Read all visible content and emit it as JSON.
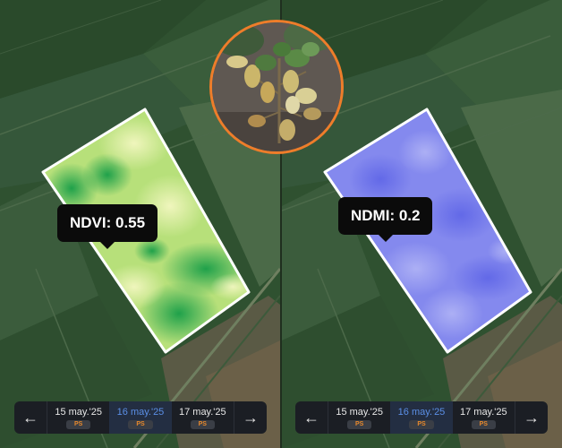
{
  "left_panel": {
    "tooltip_text": "NDVI: 0.55",
    "dates": [
      {
        "label": "15 may.'25",
        "badge": "PS",
        "active": false
      },
      {
        "label": "16 may.'25",
        "badge": "PS",
        "active": true
      },
      {
        "label": "17 may.'25",
        "badge": "PS",
        "active": false
      }
    ],
    "nav_prev": "←",
    "nav_next": "→"
  },
  "right_panel": {
    "tooltip_text": "NDMI: 0.2",
    "dates": [
      {
        "label": "15 may.'25",
        "badge": "PS",
        "active": false
      },
      {
        "label": "16 may.'25",
        "badge": "PS",
        "active": true
      },
      {
        "label": "17 may.'25",
        "badge": "PS",
        "active": false
      }
    ],
    "nav_prev": "←",
    "nav_next": "→"
  },
  "colors": {
    "accent_orange": "#ee7d2a",
    "active_date": "#5b8fe6",
    "ndvi_low": "#f3f6b0",
    "ndvi_high": "#0e9a45",
    "ndmi": "#7f85f2"
  }
}
